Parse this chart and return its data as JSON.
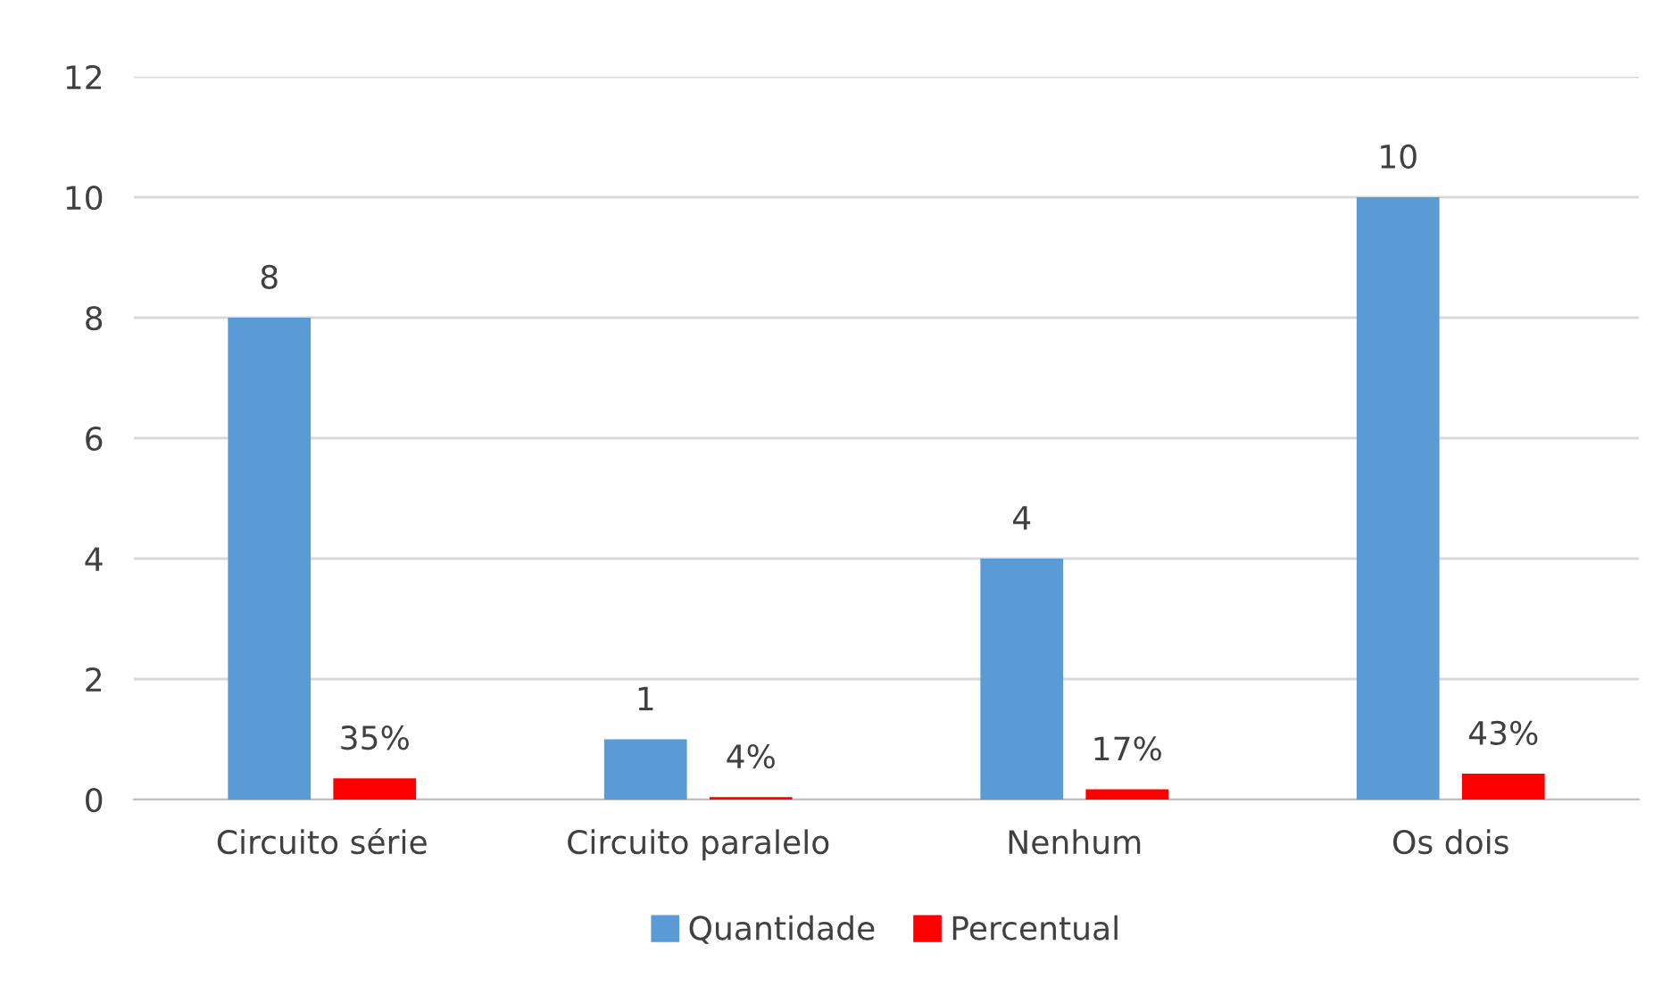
{
  "chart_data": {
    "type": "bar",
    "categories": [
      "Circuito série",
      "Circuito paralelo",
      "Nenhum",
      "Os dois"
    ],
    "series": [
      {
        "name": "Quantidade",
        "color": "#5b9bd5",
        "values": [
          8,
          1,
          4,
          10
        ],
        "data_labels": true
      },
      {
        "name": "Percentual",
        "color": "#ff0000",
        "values": [
          0.35,
          0.04,
          0.17,
          0.43
        ],
        "value_labels": [
          "35%",
          "4%",
          "17%",
          "43%"
        ]
      }
    ],
    "ylim": [
      0,
      12
    ],
    "yticks": [
      0,
      2,
      4,
      6,
      8,
      10,
      12
    ],
    "grid": "y",
    "legend": "bottom"
  }
}
